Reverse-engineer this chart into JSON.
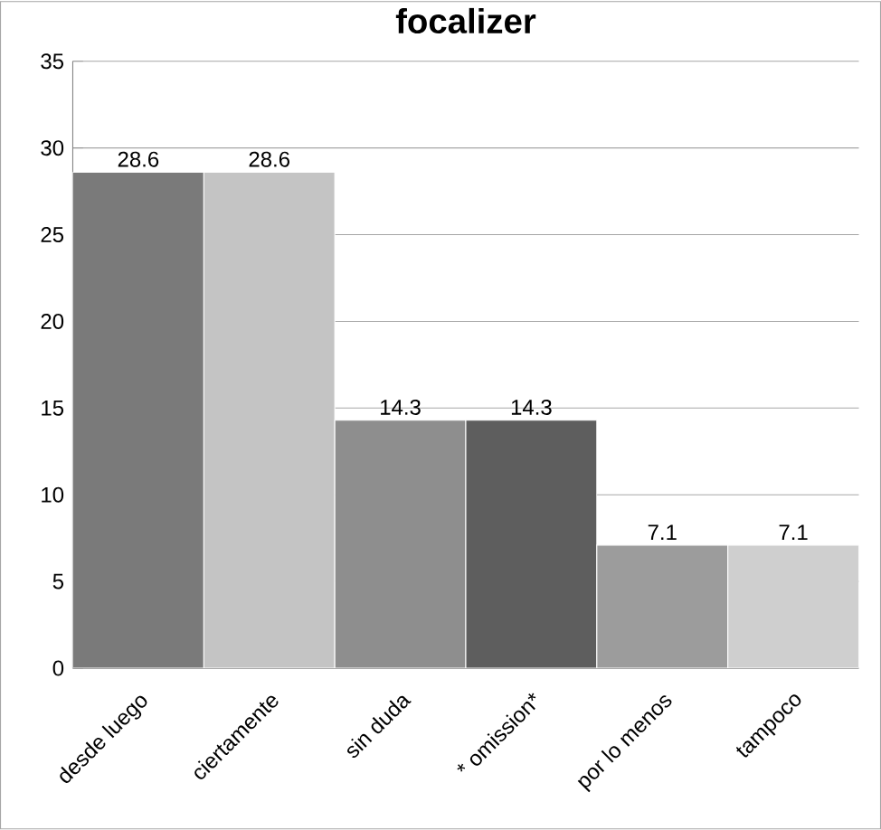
{
  "chart_data": {
    "type": "bar",
    "title": "focalizer",
    "categories": [
      "desde luego",
      "ciertamente",
      "sin duda",
      "* omission*",
      "por lo menos",
      "tampoco"
    ],
    "values": [
      28.6,
      28.6,
      14.3,
      14.3,
      7.1,
      7.1
    ],
    "colors": [
      "#7a7a7a",
      "#c4c4c4",
      "#8e8e8e",
      "#5e5e5e",
      "#9c9c9c",
      "#cfcfcf"
    ],
    "ylim": [
      0,
      35
    ],
    "yticks": [
      0,
      5,
      10,
      15,
      20,
      25,
      30,
      35
    ],
    "grid": "y",
    "data_labels": true
  }
}
